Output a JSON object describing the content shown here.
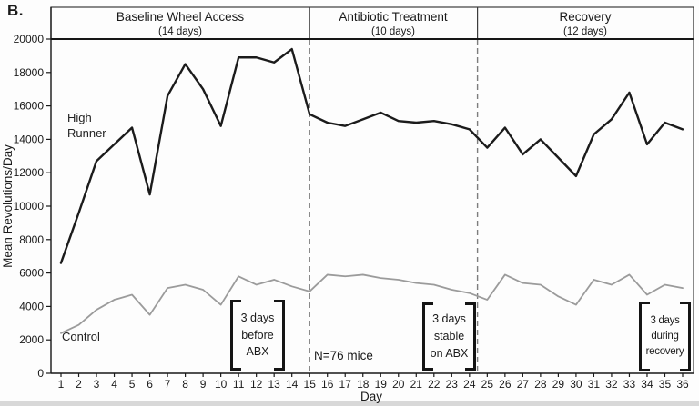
{
  "panel_label": "B.",
  "phases": [
    {
      "label": "Baseline Wheel Access",
      "duration": "(14 days)"
    },
    {
      "label": "Antibiotic Treatment",
      "duration": "(10 days)"
    },
    {
      "label": "Recovery",
      "duration": "(12 days)"
    }
  ],
  "chart_data": {
    "type": "line",
    "title": "",
    "xlabel": "Day",
    "ylabel": "Mean Revolutions/Day",
    "ylim": [
      0,
      20000
    ],
    "ytick_step": 2000,
    "grid": false,
    "legend_position": "inline-labels",
    "x": [
      1,
      2,
      3,
      4,
      5,
      6,
      7,
      8,
      9,
      10,
      11,
      12,
      13,
      14,
      15,
      16,
      17,
      18,
      19,
      20,
      21,
      22,
      23,
      24,
      25,
      26,
      27,
      28,
      29,
      30,
      31,
      32,
      33,
      34,
      35,
      36
    ],
    "phase_boundaries_day": [
      15,
      24.45
    ],
    "series": [
      {
        "name": "High Runner",
        "color": "#1b1b1b",
        "stroke_width": 2.4,
        "values": [
          6600,
          9600,
          12700,
          13700,
          14700,
          10700,
          16600,
          18500,
          17000,
          14800,
          18900,
          18900,
          18600,
          19400,
          15500,
          15000,
          14800,
          15200,
          15600,
          15100,
          15000,
          15100,
          14900,
          14600,
          13500,
          14700,
          13100,
          14000,
          12900,
          11800,
          14300,
          15200,
          16800,
          13700,
          15000,
          14600
        ]
      },
      {
        "name": "Control",
        "color": "#9b9b9b",
        "stroke_width": 1.8,
        "values": [
          2400,
          2900,
          3800,
          4400,
          4700,
          3500,
          5100,
          5300,
          5000,
          4100,
          5800,
          5300,
          5600,
          5200,
          4900,
          5900,
          5800,
          5900,
          5700,
          5600,
          5400,
          5300,
          5000,
          4800,
          4400,
          5900,
          5400,
          5300,
          4600,
          4100,
          5600,
          5300,
          5900,
          4700,
          5300,
          5100
        ]
      }
    ],
    "annotations": [
      {
        "lines": [
          "3 days",
          "before",
          "ABX"
        ],
        "day_start": 10.6,
        "day_end": 13.6
      },
      {
        "lines": [
          "3 days",
          "stable",
          "on ABX"
        ],
        "day_start": 21.4,
        "day_end": 24.4
      },
      {
        "lines": [
          "3 days",
          "during",
          "recovery"
        ],
        "day_start": 33.6,
        "day_end": 36.4
      }
    ],
    "note": {
      "text": "N=76 mice",
      "day": 15.2
    }
  }
}
